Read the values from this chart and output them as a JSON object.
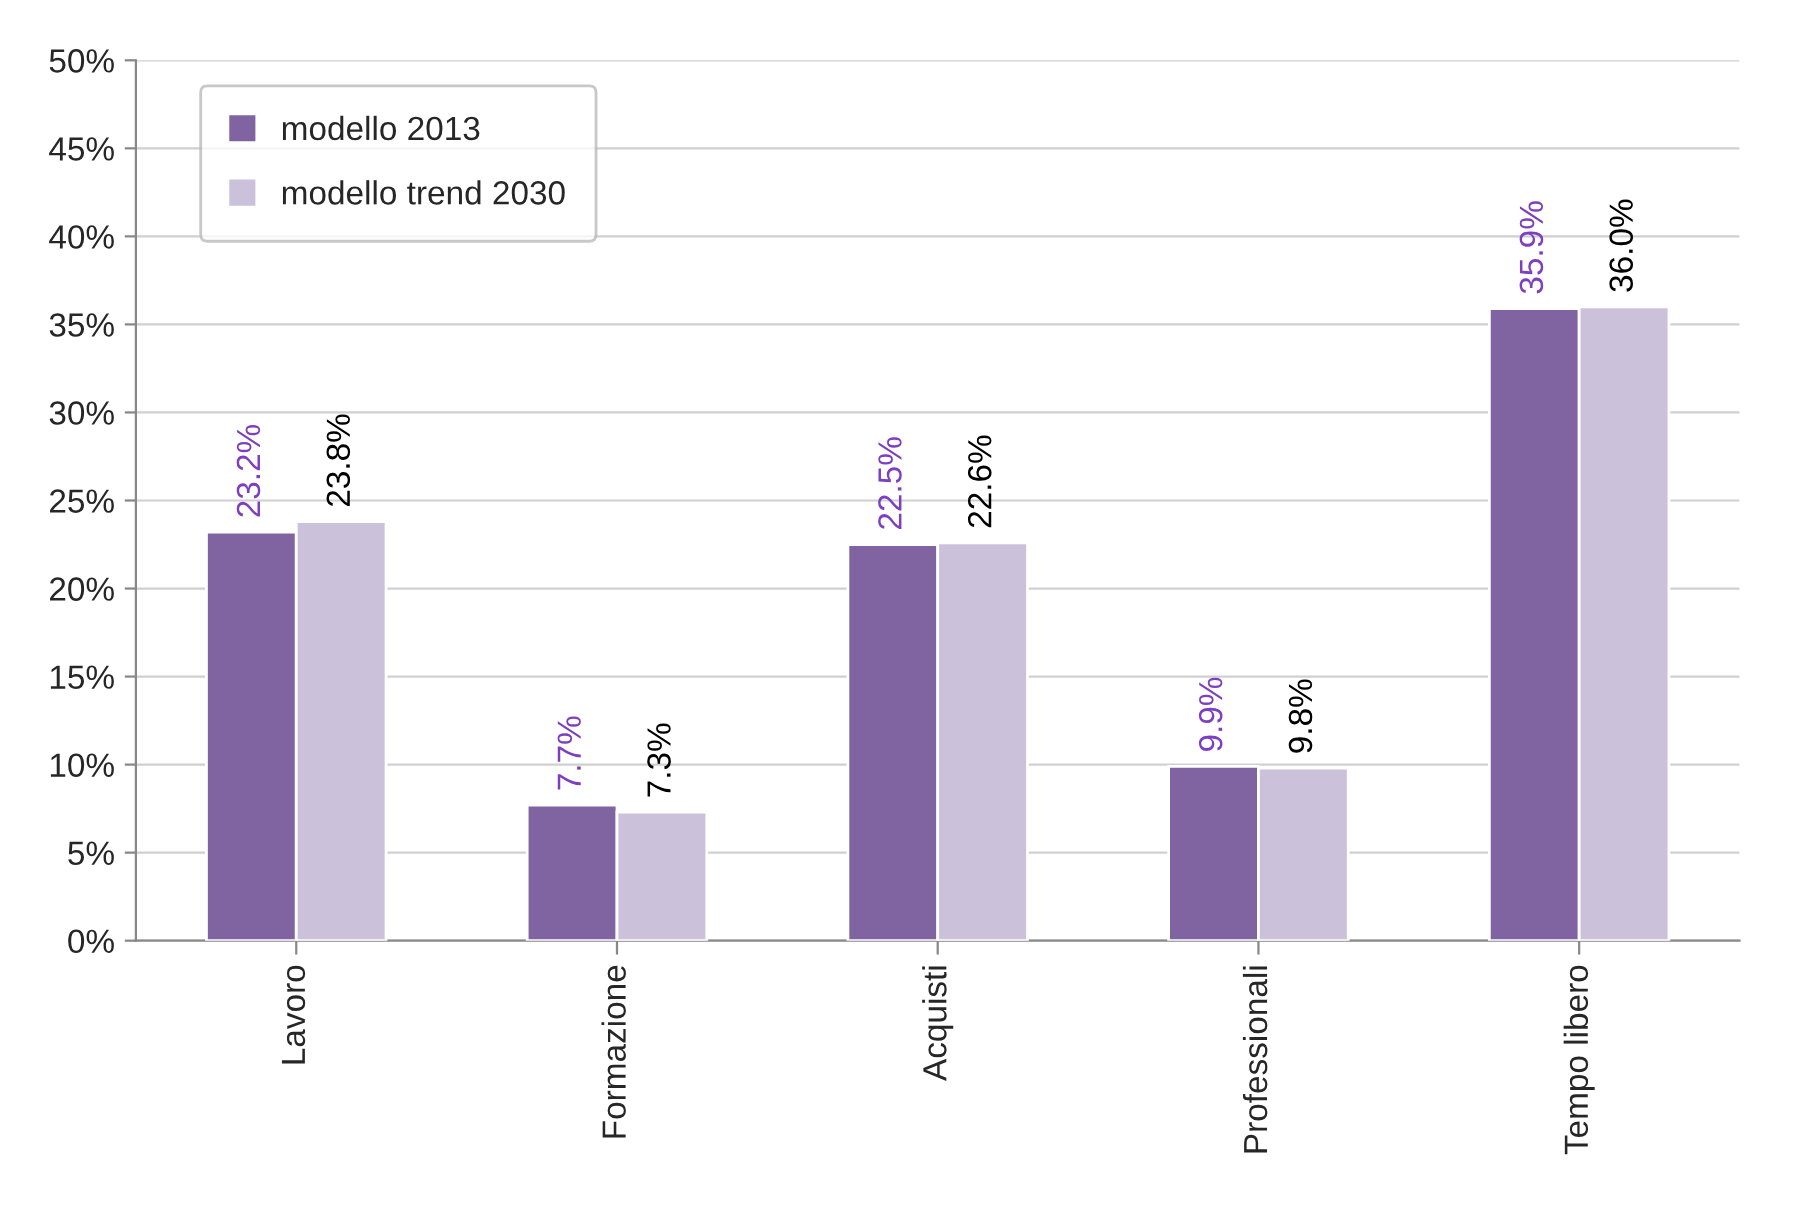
{
  "chart_data": {
    "type": "bar",
    "categories": [
      "Lavoro",
      "Formazione",
      "Acquisti",
      "Professionali",
      "Tempo libero"
    ],
    "series": [
      {
        "name": "modello 2013",
        "color": "#8064a2",
        "values": [
          23.2,
          7.7,
          22.5,
          9.9,
          35.9
        ],
        "value_labels": [
          "23.2%",
          "7.7%",
          "22.5%",
          "9.9%",
          "35.9%"
        ]
      },
      {
        "name": "modello trend 2030",
        "color": "#ccc1da",
        "values": [
          23.8,
          7.3,
          22.6,
          9.8,
          36.0
        ],
        "value_labels": [
          "23.8%",
          "7.3%",
          "22.6%",
          "9.8%",
          "36.0%"
        ]
      }
    ],
    "ylim": [
      0,
      50
    ],
    "yticks": [
      {
        "value": 0,
        "label": "0%"
      },
      {
        "value": 5,
        "label": "5%"
      },
      {
        "value": 10,
        "label": "10%"
      },
      {
        "value": 15,
        "label": "15%"
      },
      {
        "value": 20,
        "label": "20%"
      },
      {
        "value": 25,
        "label": "25%"
      },
      {
        "value": 30,
        "label": "30%"
      },
      {
        "value": 35,
        "label": "35%"
      },
      {
        "value": 40,
        "label": "40%"
      },
      {
        "value": 45,
        "label": "45%"
      },
      {
        "value": 50,
        "label": "50%"
      }
    ],
    "grid": "y",
    "legend": "top left"
  }
}
